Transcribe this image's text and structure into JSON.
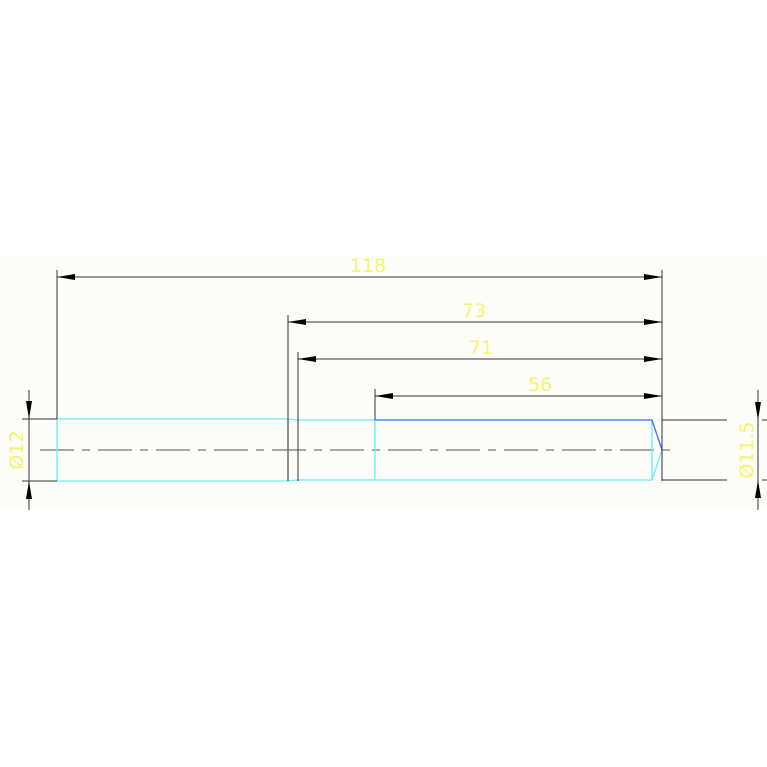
{
  "drawing": {
    "colors": {
      "background_band": "#fcfdf8",
      "outline": "#66f0f0",
      "highlight_edge": "#3a6ef0",
      "dimension_line": "#333333",
      "dimension_text": "#f5f56a",
      "centerline": "#555555"
    },
    "dimensions": {
      "overall_length": "118",
      "length_73": "73",
      "length_71": "71",
      "length_56": "56",
      "diameter_left": "Ø12",
      "diameter_right": "Ø11.5"
    }
  }
}
